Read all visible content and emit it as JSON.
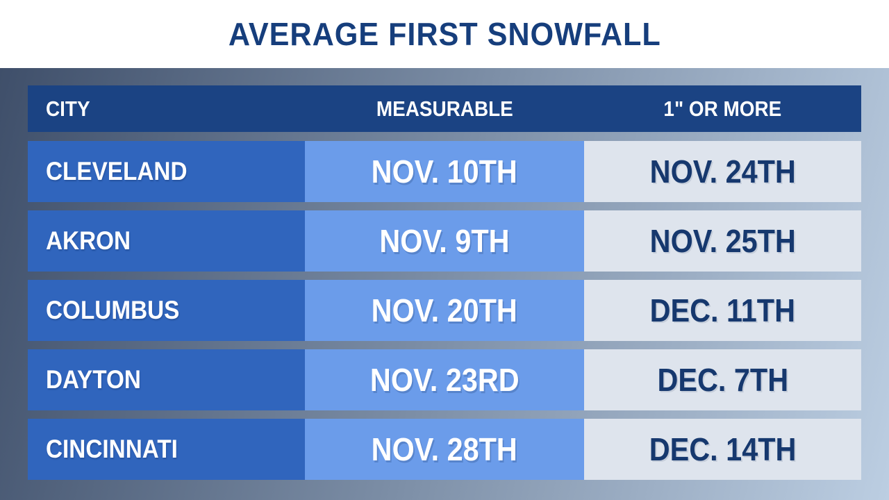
{
  "title": "AVERAGE FIRST SNOWFALL",
  "table": {
    "columns": [
      {
        "id": "city",
        "label": "CITY"
      },
      {
        "id": "measurable",
        "label": "MEASURABLE"
      },
      {
        "id": "one_inch",
        "label": "1\" OR MORE"
      }
    ],
    "rows": [
      {
        "city": "CLEVELAND",
        "measurable": "NOV. 10TH",
        "one_inch": "NOV. 24TH"
      },
      {
        "city": "AKRON",
        "measurable": "NOV. 9TH",
        "one_inch": "NOV. 25TH"
      },
      {
        "city": "COLUMBUS",
        "measurable": "NOV. 20TH",
        "one_inch": "DEC. 11TH"
      },
      {
        "city": "DAYTON",
        "measurable": "NOV. 23RD",
        "one_inch": "DEC. 7TH"
      },
      {
        "city": "CINCINNATI",
        "measurable": "NOV. 28TH",
        "one_inch": "DEC. 14TH"
      }
    ]
  },
  "chart_data": {
    "type": "table",
    "title": "AVERAGE FIRST SNOWFALL",
    "columns": [
      "CITY",
      "MEASURABLE",
      "1\" OR MORE"
    ],
    "rows": [
      [
        "CLEVELAND",
        "NOV. 10TH",
        "NOV. 24TH"
      ],
      [
        "AKRON",
        "NOV. 9TH",
        "NOV. 25TH"
      ],
      [
        "COLUMBUS",
        "NOV. 20TH",
        "DEC. 11TH"
      ],
      [
        "DAYTON",
        "NOV. 23RD",
        "DEC. 7TH"
      ],
      [
        "CINCINNATI",
        "NOV. 28TH",
        "DEC. 14TH"
      ]
    ]
  },
  "colors": {
    "title_band_bg": "#ffffff",
    "title_text": "#163e7c",
    "header_bg": "#1b4383",
    "header_text": "#ffffff",
    "city_bg": "#3065bd",
    "city_text": "#ffffff",
    "measurable_bg": "#6b9cea",
    "measurable_text": "#ffffff",
    "one_inch_bg": "#dee4ed",
    "one_inch_text": "#16386e",
    "bg_left": "#3d4d68",
    "bg_right": "#bccee2"
  }
}
